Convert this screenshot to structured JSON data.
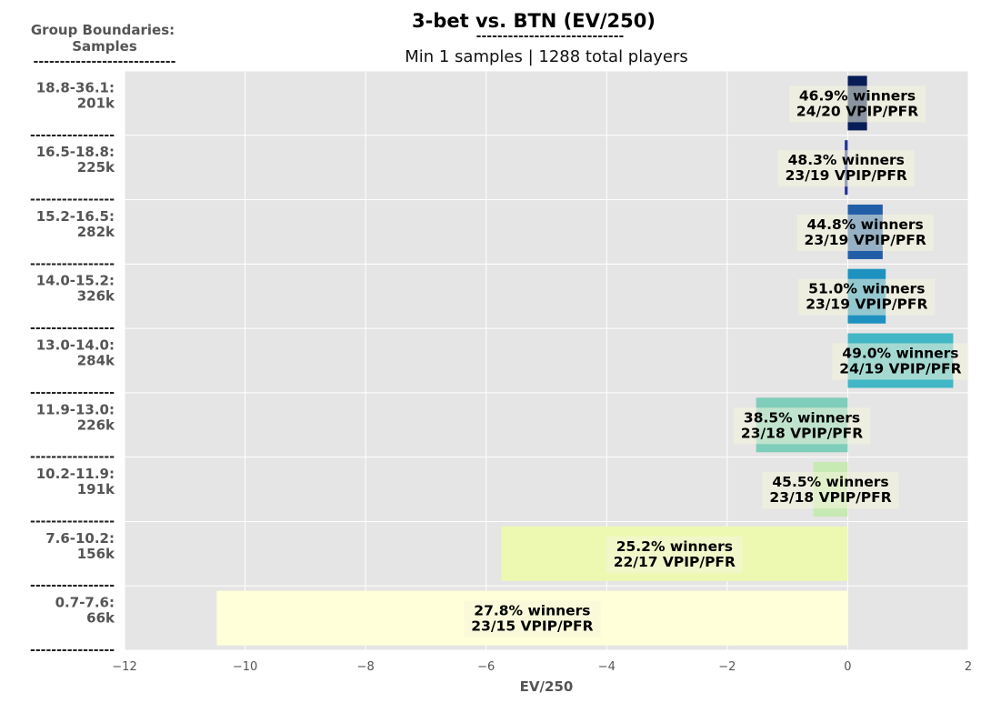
{
  "chart_data": {
    "type": "bar",
    "orientation": "horizontal",
    "title": "3-bet vs. BTN (EV/250)",
    "title_underline": "----------------------------",
    "subtitle": "Min 1 samples | 1288 total players",
    "legend_title": "Group Boundaries:",
    "legend_subtitle": "Samples",
    "legend_underline": "---------------------------",
    "separator": "----------------",
    "xlabel": "EV/250",
    "xlim": [
      -12,
      2
    ],
    "xticks": [
      "−12",
      "−10",
      "−8",
      "−6",
      "−4",
      "−2",
      "0",
      "2"
    ],
    "xtick_values": [
      -12,
      -10,
      -8,
      -6,
      -4,
      -2,
      0,
      2
    ],
    "grid": true,
    "groups": [
      {
        "range": "18.8-36.1:",
        "samples": "201k",
        "value": 0.32,
        "winners": "46.9% winners",
        "vpip_pfr": "24/20 VPIP/PFR",
        "color": "#081d58"
      },
      {
        "range": "16.5-18.8:",
        "samples": "225k",
        "value": -0.05,
        "winners": "48.3% winners",
        "vpip_pfr": "23/19 VPIP/PFR",
        "color": "#253494"
      },
      {
        "range": "15.2-16.5:",
        "samples": "282k",
        "value": 0.58,
        "winners": "44.8% winners",
        "vpip_pfr": "23/19 VPIP/PFR",
        "color": "#225ea8"
      },
      {
        "range": "14.0-15.2:",
        "samples": "326k",
        "value": 0.63,
        "winners": "51.0% winners",
        "vpip_pfr": "23/19 VPIP/PFR",
        "color": "#1d91c0"
      },
      {
        "range": "13.0-14.0:",
        "samples": "284k",
        "value": 1.75,
        "winners": "49.0% winners",
        "vpip_pfr": "24/19 VPIP/PFR",
        "color": "#41b6c4"
      },
      {
        "range": "11.9-13.0:",
        "samples": "226k",
        "value": -1.52,
        "winners": "38.5% winners",
        "vpip_pfr": "23/18 VPIP/PFR",
        "color": "#7fcdbb"
      },
      {
        "range": "10.2-11.9:",
        "samples": "191k",
        "value": -0.57,
        "winners": "45.5% winners",
        "vpip_pfr": "23/18 VPIP/PFR",
        "color": "#c7e9b4"
      },
      {
        "range": "7.6-10.2:",
        "samples": "156k",
        "value": -5.75,
        "winners": "25.2% winners",
        "vpip_pfr": "22/17 VPIP/PFR",
        "color": "#edf8b1"
      },
      {
        "range": "0.7-7.6:",
        "samples": "66k",
        "value": -10.47,
        "winners": "27.8% winners",
        "vpip_pfr": "23/15 VPIP/PFR",
        "color": "#ffffd9"
      }
    ]
  }
}
